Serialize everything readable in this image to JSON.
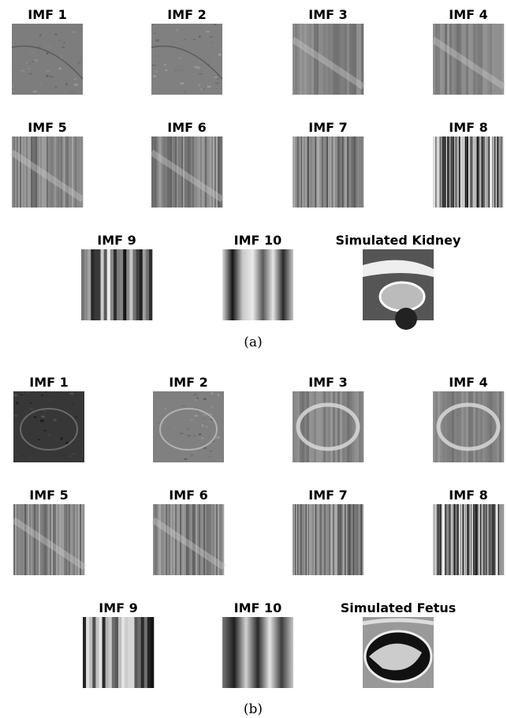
{
  "panels": [
    {
      "labels": [
        "IMF 1",
        "IMF 2",
        "IMF 3",
        "IMF 4",
        "IMF 5",
        "IMF 6",
        "IMF 7",
        "IMF 8",
        "IMF 9",
        "IMF 10",
        "Simulated Kidney"
      ],
      "caption": "(a)"
    },
    {
      "labels": [
        "IMF 1",
        "IMF 2",
        "IMF 3",
        "IMF 4",
        "IMF 5",
        "IMF 6",
        "IMF 7",
        "IMF 8",
        "IMF 9",
        "IMF 10",
        "Simulated Fetus"
      ],
      "caption": "(b)"
    }
  ]
}
